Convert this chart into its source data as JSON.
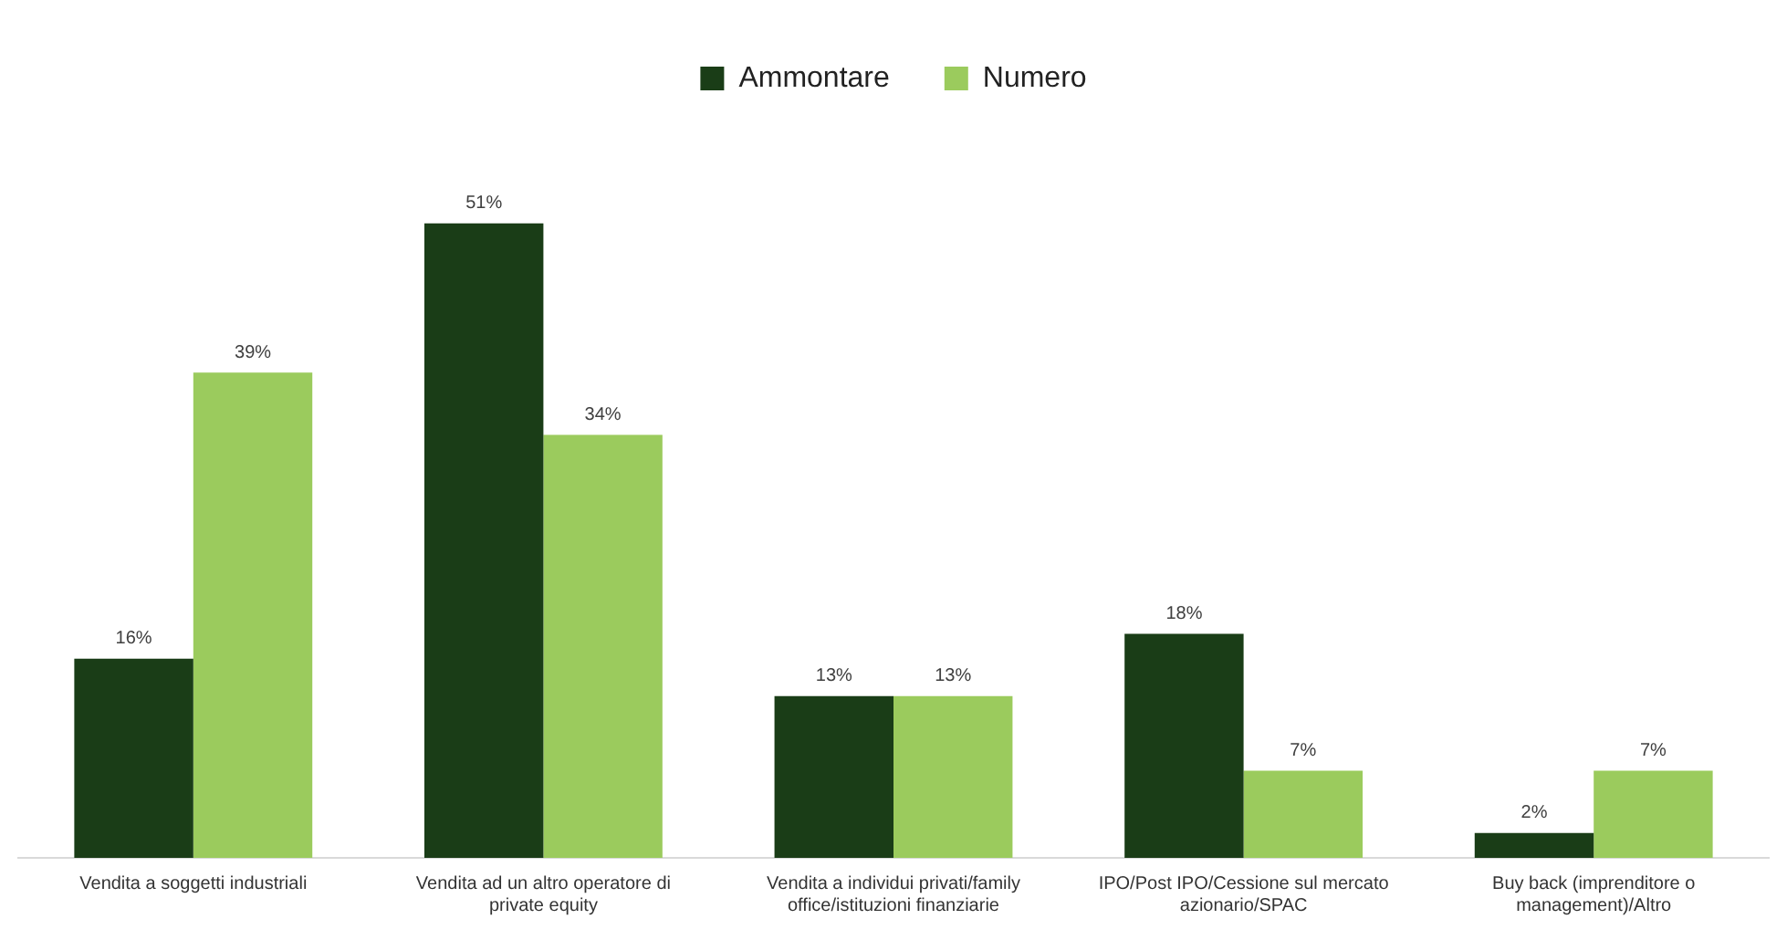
{
  "chart_data": {
    "type": "bar",
    "categories": [
      "Vendita a soggetti industriali",
      "Vendita ad un altro operatore di private equity",
      "Vendita a individui privati/family office/istituzioni finanziarie",
      "IPO/Post IPO/Cessione sul mercato azionario/SPAC",
      "Buy back (imprenditore o management)/Altro"
    ],
    "series": [
      {
        "name": "Ammontare",
        "color": "#1a3d17",
        "values": [
          16,
          51,
          13,
          18,
          2
        ],
        "value_labels": [
          "16%",
          "51%",
          "13%",
          "18%",
          "2%"
        ]
      },
      {
        "name": "Numero",
        "color": "#9bcb5d",
        "values": [
          39,
          34,
          13,
          7,
          7
        ],
        "value_labels": [
          "39%",
          "34%",
          "13%",
          "7%",
          "7%"
        ]
      }
    ],
    "legend": "top",
    "grid": false
  }
}
